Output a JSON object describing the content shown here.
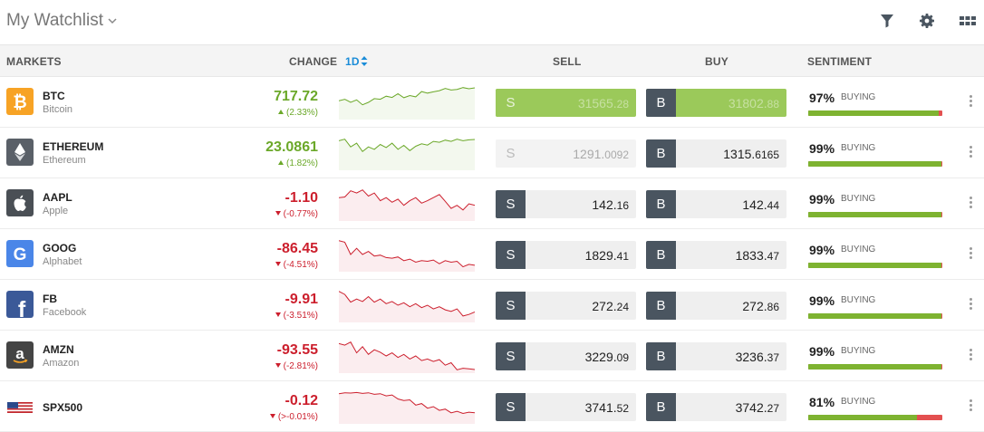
{
  "header": {
    "title": "My Watchlist",
    "icons": [
      "chevron-down-icon",
      "filter-icon",
      "gear-icon",
      "grid-icon"
    ]
  },
  "columns": {
    "markets": "MARKETS",
    "change": "CHANGE",
    "period": "1D",
    "sell": "SELL",
    "buy": "BUY",
    "sentiment": "SENTIMENT"
  },
  "colors": {
    "positive": "#6ba829",
    "negative": "#cc1f2d",
    "button_dark": "#4a5560",
    "sentiment_buy": "#7eb331",
    "sentiment_sell": "#e35050",
    "link": "#1a8cd8"
  },
  "rows": [
    {
      "symbol": "BTC",
      "name": "Bitcoin",
      "icon": "bitcoin-icon",
      "change": "717.72",
      "change_pct": "(2.33%)",
      "direction": "up",
      "sell_label": "S",
      "sell_main": "31565.",
      "sell_small": "28",
      "buy_label": "B",
      "buy_main": "31802.",
      "buy_small": "88",
      "state": "flash",
      "sentiment_pct": "97%",
      "sentiment_label": "BUYING",
      "sentiment_value": 97,
      "spark": [
        0.55,
        0.6,
        0.5,
        0.58,
        0.42,
        0.5,
        0.62,
        0.6,
        0.7,
        0.66,
        0.78,
        0.65,
        0.72,
        0.68,
        0.85,
        0.8,
        0.84,
        0.88,
        0.95,
        0.9,
        0.92,
        0.98,
        0.94,
        0.97
      ]
    },
    {
      "symbol": "ETHEREUM",
      "name": "Ethereum",
      "icon": "ethereum-icon",
      "change": "23.0861",
      "change_pct": "(1.82%)",
      "direction": "up",
      "sell_label": "S",
      "sell_main": "1291.",
      "sell_small": "0092",
      "buy_label": "B",
      "buy_main": "1315.",
      "buy_small": "6165",
      "state": "disabled",
      "sentiment_pct": "99%",
      "sentiment_label": "BUYING",
      "sentiment_value": 99,
      "spark": [
        0.9,
        0.95,
        0.7,
        0.82,
        0.55,
        0.7,
        0.62,
        0.78,
        0.68,
        0.82,
        0.62,
        0.75,
        0.58,
        0.72,
        0.8,
        0.76,
        0.88,
        0.85,
        0.92,
        0.88,
        0.95,
        0.9,
        0.93,
        0.94
      ]
    },
    {
      "symbol": "AAPL",
      "name": "Apple",
      "icon": "apple-icon",
      "change": "-1.10",
      "change_pct": "(-0.77%)",
      "direction": "down",
      "sell_label": "S",
      "sell_main": "142.",
      "sell_small": "16",
      "buy_label": "B",
      "buy_main": "142.",
      "buy_small": "44",
      "state": "normal",
      "sentiment_pct": "99%",
      "sentiment_label": "BUYING",
      "sentiment_value": 99,
      "spark": [
        0.7,
        0.72,
        0.92,
        0.85,
        0.95,
        0.75,
        0.85,
        0.6,
        0.7,
        0.55,
        0.65,
        0.45,
        0.6,
        0.7,
        0.52,
        0.6,
        0.7,
        0.8,
        0.58,
        0.35,
        0.45,
        0.3,
        0.5,
        0.45
      ]
    },
    {
      "symbol": "GOOG",
      "name": "Alphabet",
      "icon": "google-icon",
      "change": "-86.45",
      "change_pct": "(-4.51%)",
      "direction": "down",
      "sell_label": "S",
      "sell_main": "1829.",
      "sell_small": "41",
      "buy_label": "B",
      "buy_main": "1833.",
      "buy_small": "47",
      "state": "normal",
      "sentiment_pct": "99%",
      "sentiment_label": "BUYING",
      "sentiment_value": 99,
      "spark": [
        0.95,
        0.9,
        0.5,
        0.7,
        0.5,
        0.6,
        0.45,
        0.48,
        0.4,
        0.38,
        0.42,
        0.3,
        0.35,
        0.25,
        0.3,
        0.28,
        0.32,
        0.2,
        0.3,
        0.25,
        0.28,
        0.1,
        0.18,
        0.15
      ]
    },
    {
      "symbol": "FB",
      "name": "Facebook",
      "icon": "facebook-icon",
      "change": "-9.91",
      "change_pct": "(-3.51%)",
      "direction": "down",
      "sell_label": "S",
      "sell_main": "272.",
      "sell_small": "24",
      "buy_label": "B",
      "buy_main": "272.",
      "buy_small": "86",
      "state": "normal",
      "sentiment_pct": "99%",
      "sentiment_label": "BUYING",
      "sentiment_value": 99,
      "spark": [
        0.95,
        0.85,
        0.6,
        0.7,
        0.62,
        0.78,
        0.6,
        0.7,
        0.55,
        0.62,
        0.5,
        0.58,
        0.45,
        0.55,
        0.42,
        0.5,
        0.38,
        0.45,
        0.35,
        0.3,
        0.38,
        0.15,
        0.2,
        0.28
      ]
    },
    {
      "symbol": "AMZN",
      "name": "Amazon",
      "icon": "amazon-icon",
      "change": "-93.55",
      "change_pct": "(-2.81%)",
      "direction": "down",
      "sell_label": "S",
      "sell_main": "3229.",
      "sell_small": "09",
      "buy_label": "B",
      "buy_main": "3236.",
      "buy_small": "37",
      "state": "normal",
      "sentiment_pct": "99%",
      "sentiment_label": "BUYING",
      "sentiment_value": 99,
      "spark": [
        0.9,
        0.85,
        0.95,
        0.6,
        0.8,
        0.55,
        0.7,
        0.62,
        0.5,
        0.6,
        0.45,
        0.55,
        0.4,
        0.5,
        0.35,
        0.4,
        0.32,
        0.38,
        0.2,
        0.28,
        0.05,
        0.1,
        0.08,
        0.06
      ]
    },
    {
      "symbol": "SPX500",
      "name": "",
      "icon": "us-flag-icon",
      "change": "-0.12",
      "change_pct": "(>-0.01%)",
      "direction": "down",
      "sell_label": "S",
      "sell_main": "3741.",
      "sell_small": "52",
      "buy_label": "B",
      "buy_main": "3742.",
      "buy_small": "27",
      "state": "normal",
      "sentiment_pct": "81%",
      "sentiment_label": "BUYING",
      "sentiment_value": 81,
      "spark": [
        0.92,
        0.95,
        0.94,
        0.96,
        0.93,
        0.95,
        0.9,
        0.92,
        0.85,
        0.88,
        0.75,
        0.7,
        0.72,
        0.55,
        0.6,
        0.45,
        0.5,
        0.38,
        0.42,
        0.3,
        0.35,
        0.28,
        0.32,
        0.3
      ]
    }
  ]
}
